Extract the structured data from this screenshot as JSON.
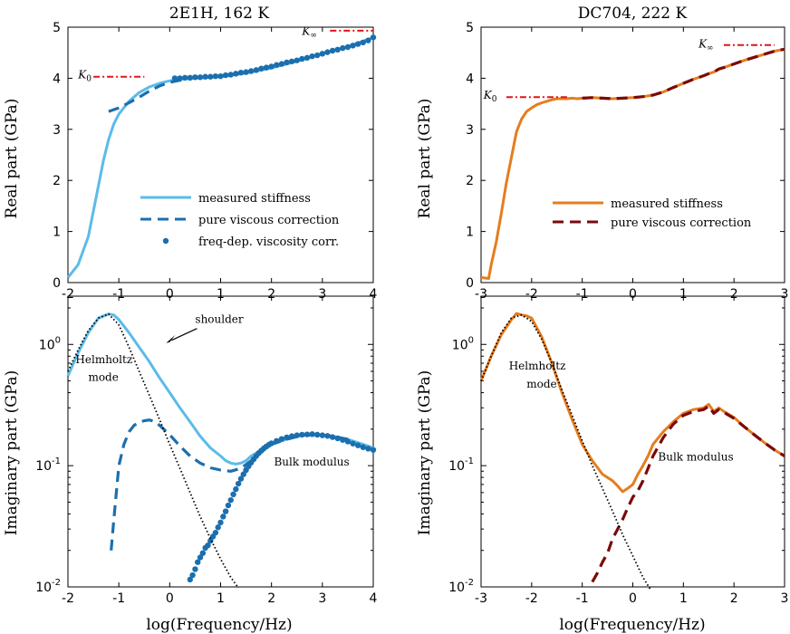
{
  "figure": {
    "left_title": "2E1H, 162 K",
    "right_title": "DC704, 222 K",
    "ylabel_real": "Real part (GPa)",
    "ylabel_imag": "Imaginary part (GPa)",
    "xlabel": "log(Frequency/Hz)"
  },
  "colors": {
    "measured_left": "#5bbbea",
    "viscous_left": "#1b6fae",
    "freq_dep_left": "#1b6fae",
    "measured_right": "#e57d1e",
    "viscous_right": "#7a0a0a",
    "k_marker": "#e0151b",
    "helmholtz_fit": "#000000"
  },
  "chart_data": [
    {
      "id": "left-top",
      "type": "line",
      "title": "2E1H, 162 K",
      "ylabel": "Real part (GPa)",
      "xlim": [
        -2,
        4
      ],
      "ylim": [
        0,
        5
      ],
      "yscale": "linear",
      "xticks": [
        "-2",
        "-1",
        "0",
        "1",
        "2",
        "3",
        "4"
      ],
      "yticks": [
        "0",
        "1",
        "2",
        "3",
        "4",
        "5"
      ],
      "series": [
        {
          "name": "measured stiffness",
          "style": "solid",
          "colorKey": "measured_left",
          "x": [
            -2,
            -1.8,
            -1.6,
            -1.4,
            -1.3,
            -1.2,
            -1.1,
            -1,
            -0.8,
            -0.6,
            -0.4,
            -0.2,
            0,
            0.2,
            0.5,
            1,
            1.5,
            2,
            2.5,
            3,
            3.5,
            4
          ],
          "y": [
            0.1,
            0.35,
            0.9,
            1.9,
            2.4,
            2.8,
            3.1,
            3.3,
            3.55,
            3.72,
            3.83,
            3.9,
            3.95,
            3.98,
            4.0,
            4.03,
            4.1,
            4.2,
            4.33,
            4.48,
            4.62,
            4.8
          ]
        },
        {
          "name": "pure viscous correction",
          "style": "dashed",
          "colorKey": "viscous_left",
          "x": [
            -1.2,
            -1,
            -0.8,
            -0.6,
            -0.4,
            -0.2,
            0,
            0.3
          ],
          "y": [
            3.35,
            3.42,
            3.52,
            3.63,
            3.75,
            3.85,
            3.92,
            3.98
          ]
        },
        {
          "name": "freq-dep. viscosity corr.",
          "style": "dots",
          "colorKey": "freq_dep_left",
          "x": [
            0.1,
            0.2,
            0.3,
            0.4,
            0.5,
            0.6,
            0.7,
            0.8,
            0.9,
            1,
            1.1,
            1.2,
            1.3,
            1.4,
            1.5,
            1.6,
            1.7,
            1.8,
            1.9,
            2,
            2.1,
            2.2,
            2.3,
            2.4,
            2.5,
            2.6,
            2.7,
            2.8,
            2.9,
            3,
            3.1,
            3.2,
            3.3,
            3.4,
            3.5,
            3.6,
            3.7,
            3.8,
            3.9,
            4
          ],
          "y": [
            4.0,
            4.0,
            4.01,
            4.01,
            4.02,
            4.02,
            4.03,
            4.03,
            4.04,
            4.04,
            4.06,
            4.07,
            4.09,
            4.11,
            4.12,
            4.14,
            4.16,
            4.19,
            4.21,
            4.23,
            4.26,
            4.28,
            4.31,
            4.33,
            4.35,
            4.38,
            4.4,
            4.43,
            4.45,
            4.48,
            4.51,
            4.54,
            4.56,
            4.59,
            4.61,
            4.64,
            4.67,
            4.7,
            4.74,
            4.8
          ]
        },
        {
          "name": "K0",
          "style": "dashdot",
          "colorKey": "k_marker",
          "x": [
            -1.5,
            -0.5
          ],
          "y": [
            4.03,
            4.03
          ]
        },
        {
          "name": "Kinf",
          "style": "dashdot",
          "colorKey": "k_marker",
          "x": [
            3.15,
            4
          ],
          "y": [
            4.93,
            4.93
          ]
        }
      ],
      "legend": {
        "position": "center-right",
        "entries": [
          "measured stiffness",
          "pure viscous correction",
          "freq-dep. viscosity corr."
        ]
      },
      "annotations": [
        {
          "text": "K",
          "sub": "0",
          "x": -1.8,
          "y": 4.0
        },
        {
          "text": "K",
          "sub": "∞",
          "x": 2.6,
          "y": 4.85
        }
      ]
    },
    {
      "id": "right-top",
      "type": "line",
      "title": "DC704, 222 K",
      "ylabel": "Real part (GPa)",
      "xlim": [
        -3,
        3
      ],
      "ylim": [
        0,
        5
      ],
      "yscale": "linear",
      "xticks": [
        "-3",
        "-2",
        "-1",
        "0",
        "1",
        "2",
        "3"
      ],
      "yticks": [
        "0",
        "1",
        "2",
        "3",
        "4",
        "5"
      ],
      "series": [
        {
          "name": "measured stiffness",
          "style": "solid",
          "colorKey": "measured_right",
          "x": [
            -3,
            -2.85,
            -2.8,
            -2.7,
            -2.6,
            -2.5,
            -2.4,
            -2.3,
            -2.2,
            -2.1,
            -2.0,
            -1.9,
            -1.8,
            -1.7,
            -1.6,
            -1.5,
            -1.4,
            -1.3,
            -1.2,
            -1.1,
            -1.0,
            -0.8,
            -0.6,
            -0.4,
            -0.2,
            0,
            0.2,
            0.4,
            0.6,
            0.8,
            1.0,
            1.2,
            1.4,
            1.5,
            1.6,
            1.7,
            1.8,
            2.0,
            2.2,
            2.4,
            2.6,
            2.8,
            3.0
          ],
          "y": [
            0.1,
            0.08,
            0.35,
            0.8,
            1.35,
            1.95,
            2.45,
            2.95,
            3.2,
            3.35,
            3.42,
            3.48,
            3.52,
            3.55,
            3.58,
            3.6,
            3.6,
            3.6,
            3.61,
            3.6,
            3.61,
            3.62,
            3.61,
            3.6,
            3.61,
            3.62,
            3.64,
            3.67,
            3.73,
            3.82,
            3.9,
            3.98,
            4.05,
            4.09,
            4.12,
            4.18,
            4.21,
            4.28,
            4.35,
            4.41,
            4.47,
            4.53,
            4.57
          ]
        },
        {
          "name": "pure viscous correction",
          "style": "dashed",
          "colorKey": "viscous_right",
          "x": [
            -1.0,
            -0.8,
            -0.6,
            -0.4,
            -0.2,
            0,
            0.2,
            0.4,
            0.6,
            0.8,
            1.0,
            1.2,
            1.4,
            1.5,
            1.6,
            1.7,
            1.8,
            2.0,
            2.2,
            2.4,
            2.6,
            2.8,
            3.0
          ],
          "y": [
            3.61,
            3.62,
            3.61,
            3.6,
            3.61,
            3.62,
            3.64,
            3.67,
            3.73,
            3.82,
            3.9,
            3.98,
            4.05,
            4.09,
            4.12,
            4.18,
            4.21,
            4.28,
            4.35,
            4.41,
            4.47,
            4.53,
            4.57
          ]
        },
        {
          "name": "K0",
          "style": "dashdot",
          "colorKey": "k_marker",
          "x": [
            -2.5,
            -1.3
          ],
          "y": [
            3.63,
            3.63
          ]
        },
        {
          "name": "Kinf",
          "style": "dashdot",
          "colorKey": "k_marker",
          "x": [
            1.8,
            2.8
          ],
          "y": [
            4.65,
            4.65
          ]
        }
      ],
      "legend": {
        "position": "center-right",
        "entries": [
          "measured stiffness",
          "pure viscous correction"
        ]
      },
      "annotations": [
        {
          "text": "K",
          "sub": "0",
          "x": -2.95,
          "y": 3.6
        },
        {
          "text": "K",
          "sub": "∞",
          "x": 1.3,
          "y": 4.6
        }
      ]
    },
    {
      "id": "left-bottom",
      "type": "line",
      "ylabel": "Imaginary part (GPa)",
      "xlabel": "log(Frequency/Hz)",
      "xlim": [
        -2,
        4
      ],
      "ylim": [
        0.01,
        2.5
      ],
      "yscale": "log",
      "xticks": [
        "-2",
        "-1",
        "0",
        "1",
        "2",
        "3",
        "4"
      ],
      "yticks": [
        "10-2",
        "10-1",
        "100"
      ],
      "yticks_values": [
        0.01,
        0.1,
        1
      ],
      "series": [
        {
          "name": "measured stiffness",
          "style": "solid",
          "colorKey": "measured_left",
          "x": [
            -2,
            -1.8,
            -1.6,
            -1.4,
            -1.2,
            -1.1,
            -1,
            -0.8,
            -0.6,
            -0.4,
            -0.2,
            0,
            0.2,
            0.4,
            0.6,
            0.8,
            1,
            1.1,
            1.2,
            1.3,
            1.4,
            1.5,
            1.6,
            1.8,
            2,
            2.3,
            2.6,
            2.9,
            3.2,
            3.5,
            3.8,
            4
          ],
          "y": [
            0.55,
            0.85,
            1.25,
            1.65,
            1.78,
            1.75,
            1.6,
            1.25,
            0.95,
            0.72,
            0.53,
            0.4,
            0.3,
            0.23,
            0.175,
            0.14,
            0.12,
            0.11,
            0.105,
            0.103,
            0.105,
            0.11,
            0.12,
            0.135,
            0.15,
            0.165,
            0.178,
            0.18,
            0.175,
            0.165,
            0.15,
            0.14
          ]
        },
        {
          "name": "pure viscous correction",
          "style": "dashed",
          "colorKey": "viscous_left",
          "x": [
            -1.15,
            -1.1,
            -1.05,
            -1.0,
            -0.9,
            -0.8,
            -0.7,
            -0.6,
            -0.5,
            -0.4,
            -0.3,
            -0.2,
            0,
            0.2,
            0.4,
            0.6,
            0.8,
            1.0,
            1.2,
            1.4,
            1.6,
            1.8,
            2.0,
            2.3,
            2.6,
            2.9,
            3.2,
            3.5
          ],
          "y": [
            0.02,
            0.035,
            0.06,
            0.1,
            0.15,
            0.19,
            0.215,
            0.228,
            0.235,
            0.238,
            0.232,
            0.215,
            0.18,
            0.145,
            0.12,
            0.105,
            0.096,
            0.092,
            0.09,
            0.095,
            0.11,
            0.13,
            0.15,
            0.165,
            0.178,
            0.18,
            0.175,
            0.165
          ]
        },
        {
          "name": "freq-dep. viscosity corr.",
          "style": "dots",
          "colorKey": "freq_dep_left",
          "x": [
            0.4,
            0.45,
            0.5,
            0.55,
            0.6,
            0.65,
            0.7,
            0.75,
            0.8,
            0.85,
            0.9,
            0.95,
            1.0,
            1.05,
            1.1,
            1.15,
            1.2,
            1.25,
            1.3,
            1.35,
            1.4,
            1.45,
            1.5,
            1.55,
            1.6,
            1.65,
            1.7,
            1.75,
            1.8,
            1.85,
            1.9,
            1.95,
            2.0,
            2.1,
            2.2,
            2.3,
            2.4,
            2.5,
            2.6,
            2.7,
            2.8,
            2.9,
            3.0,
            3.1,
            3.2,
            3.3,
            3.4,
            3.5,
            3.6,
            3.7,
            3.8,
            3.9,
            4.0
          ],
          "y": [
            0.0115,
            0.0125,
            0.014,
            0.016,
            0.0175,
            0.019,
            0.021,
            0.022,
            0.024,
            0.026,
            0.028,
            0.031,
            0.034,
            0.038,
            0.042,
            0.047,
            0.052,
            0.058,
            0.064,
            0.071,
            0.078,
            0.085,
            0.092,
            0.099,
            0.106,
            0.113,
            0.12,
            0.127,
            0.133,
            0.139,
            0.144,
            0.149,
            0.153,
            0.16,
            0.166,
            0.171,
            0.175,
            0.178,
            0.18,
            0.181,
            0.182,
            0.18,
            0.178,
            0.176,
            0.172,
            0.168,
            0.163,
            0.158,
            0.152,
            0.147,
            0.142,
            0.138,
            0.135
          ]
        },
        {
          "name": "Helmholtz fit",
          "style": "dotted",
          "colorKey": "helmholtz_fit",
          "x": [
            -2,
            -1.8,
            -1.6,
            -1.4,
            -1.2,
            -1.0,
            -0.8,
            -0.6,
            -0.4,
            -0.2,
            0,
            0.2,
            0.4,
            0.6,
            0.8,
            1.0,
            1.2,
            1.35
          ],
          "y": [
            0.6,
            0.9,
            1.3,
            1.65,
            1.78,
            1.45,
            0.95,
            0.6,
            0.38,
            0.24,
            0.15,
            0.095,
            0.06,
            0.038,
            0.025,
            0.017,
            0.012,
            0.0098
          ]
        }
      ],
      "annotations": [
        {
          "text": "Helmholtz",
          "x": -1.85,
          "y": 0.7
        },
        {
          "text": "mode",
          "x": -1.6,
          "y": 0.5
        },
        {
          "text": "shoulder",
          "x": 0.5,
          "y": 1.5
        },
        {
          "text": "Bulk modulus",
          "x": 2.05,
          "y": 0.1
        }
      ]
    },
    {
      "id": "right-bottom",
      "type": "line",
      "ylabel": "Imaginary part (GPa)",
      "xlabel": "log(Frequency/Hz)",
      "xlim": [
        -3,
        3
      ],
      "ylim": [
        0.01,
        2.5
      ],
      "yscale": "log",
      "xticks": [
        "-3",
        "-2",
        "-1",
        "0",
        "1",
        "2",
        "3"
      ],
      "yticks": [
        "10-2",
        "10-1",
        "100"
      ],
      "yticks_values": [
        0.01,
        0.1,
        1
      ],
      "series": [
        {
          "name": "measured stiffness",
          "style": "solid",
          "colorKey": "measured_right",
          "x": [
            -3,
            -2.8,
            -2.6,
            -2.4,
            -2.3,
            -2.2,
            -2.1,
            -2.0,
            -1.8,
            -1.6,
            -1.4,
            -1.2,
            -1.0,
            -0.8,
            -0.6,
            -0.4,
            -0.3,
            -0.2,
            -0.1,
            0,
            0.1,
            0.2,
            0.3,
            0.4,
            0.6,
            0.8,
            1.0,
            1.2,
            1.4,
            1.5,
            1.6,
            1.7,
            1.8,
            2.0,
            2.2,
            2.4,
            2.6,
            2.8,
            3.0
          ],
          "y": [
            0.5,
            0.8,
            1.2,
            1.6,
            1.8,
            1.75,
            1.72,
            1.65,
            1.15,
            0.7,
            0.4,
            0.24,
            0.15,
            0.11,
            0.085,
            0.075,
            0.068,
            0.061,
            0.065,
            0.07,
            0.085,
            0.1,
            0.12,
            0.15,
            0.19,
            0.23,
            0.27,
            0.29,
            0.3,
            0.32,
            0.28,
            0.3,
            0.28,
            0.25,
            0.21,
            0.18,
            0.155,
            0.135,
            0.12
          ]
        },
        {
          "name": "pure viscous correction",
          "style": "dashed",
          "colorKey": "viscous_right",
          "x": [
            -0.8,
            -0.7,
            -0.6,
            -0.5,
            -0.4,
            -0.3,
            -0.2,
            -0.1,
            0,
            0.1,
            0.2,
            0.3,
            0.4,
            0.6,
            0.8,
            1.0,
            1.2,
            1.4,
            1.5,
            1.6,
            1.7,
            1.8,
            2.0,
            2.2,
            2.4,
            2.6,
            2.8,
            3.0
          ],
          "y": [
            0.011,
            0.013,
            0.016,
            0.019,
            0.025,
            0.03,
            0.036,
            0.045,
            0.055,
            0.062,
            0.075,
            0.095,
            0.12,
            0.17,
            0.22,
            0.26,
            0.28,
            0.29,
            0.31,
            0.27,
            0.29,
            0.275,
            0.245,
            0.21,
            0.18,
            0.155,
            0.135,
            0.12
          ]
        },
        {
          "name": "Helmholtz fit",
          "style": "dotted",
          "colorKey": "helmholtz_fit",
          "x": [
            -3,
            -2.8,
            -2.6,
            -2.4,
            -2.2,
            -2.0,
            -1.8,
            -1.6,
            -1.4,
            -1.2,
            -1.0,
            -0.8,
            -0.6,
            -0.4,
            -0.2,
            0,
            0.2,
            0.35
          ],
          "y": [
            0.5,
            0.8,
            1.25,
            1.65,
            1.75,
            1.55,
            1.1,
            0.7,
            0.42,
            0.26,
            0.16,
            0.1,
            0.065,
            0.042,
            0.027,
            0.018,
            0.012,
            0.0095
          ]
        }
      ],
      "annotations": [
        {
          "text": "Helmholtz",
          "x": -2.45,
          "y": 0.62
        },
        {
          "text": "mode",
          "x": -2.1,
          "y": 0.44
        },
        {
          "text": "Bulk modulus",
          "x": 0.5,
          "y": 0.11
        }
      ]
    }
  ]
}
